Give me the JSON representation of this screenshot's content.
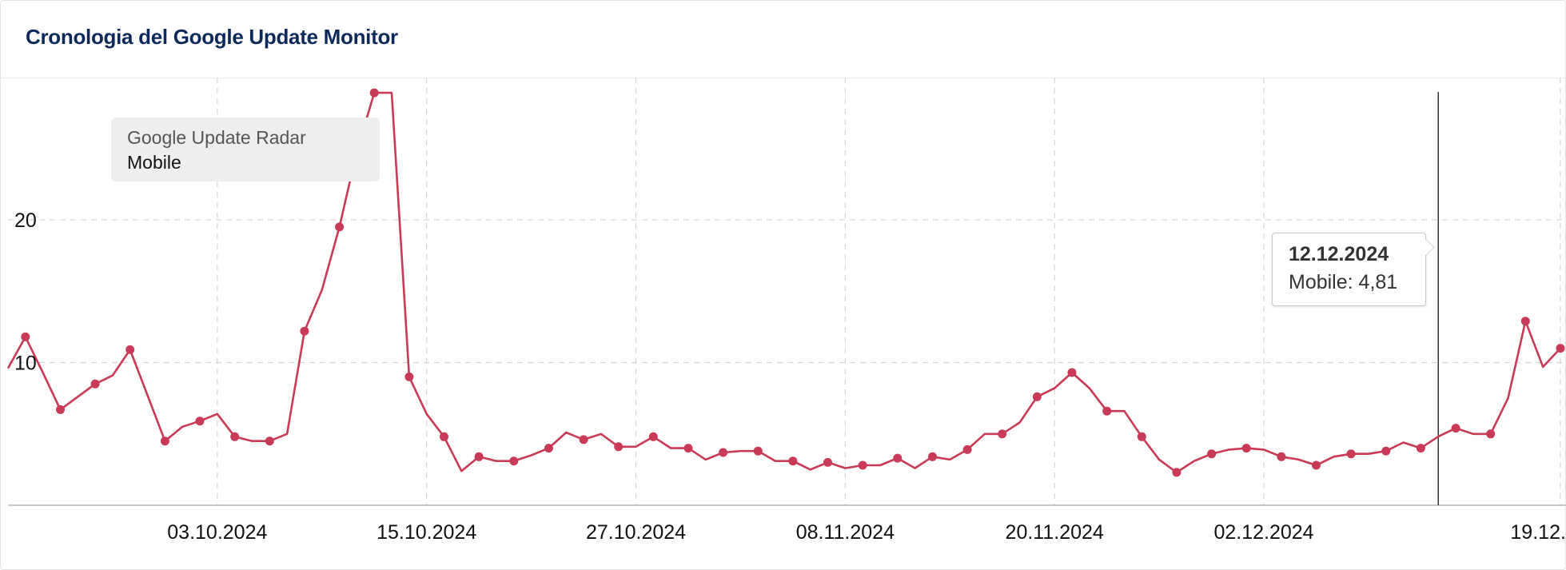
{
  "header": {
    "title": "Cronologia del Google Update Monitor"
  },
  "legend": {
    "title": "Google Update Radar",
    "series_label": "Mobile"
  },
  "tooltip": {
    "date": "12.12.2024",
    "value_text": "Mobile: 4,81"
  },
  "colors": {
    "series": "#c83a55",
    "grid": "#d6d6d6",
    "crosshair": "#333333",
    "title": "#0b2a5b"
  },
  "chart_data": {
    "type": "line",
    "title": "",
    "xlabel": "",
    "ylabel": "",
    "ylim": [
      0,
      29
    ],
    "yticks": [
      {
        "value": 10,
        "label": "10"
      },
      {
        "value": 20,
        "label": "20"
      }
    ],
    "xticks": [
      {
        "x": 12,
        "label": "03.10.2024"
      },
      {
        "x": 24,
        "label": "15.10.2024"
      },
      {
        "x": 36,
        "label": "27.10.2024"
      },
      {
        "x": 48,
        "label": "08.11.2024"
      },
      {
        "x": 60,
        "label": "20.11.2024"
      },
      {
        "x": 72,
        "label": "02.12.2024"
      },
      {
        "x": 89,
        "label": "19.12.2024"
      }
    ],
    "grid": true,
    "legend_position": "top-left",
    "crosshair_x": 82,
    "series": [
      {
        "name": "Mobile",
        "x": [
          0,
          1,
          2,
          3,
          4,
          5,
          6,
          7,
          8,
          9,
          10,
          11,
          12,
          13,
          14,
          15,
          16,
          17,
          18,
          19,
          20,
          21,
          22,
          23,
          24,
          25,
          26,
          27,
          28,
          29,
          30,
          31,
          32,
          33,
          34,
          35,
          36,
          37,
          38,
          39,
          40,
          41,
          42,
          43,
          44,
          45,
          46,
          47,
          48,
          49,
          50,
          51,
          52,
          53,
          54,
          55,
          56,
          57,
          58,
          59,
          60,
          61,
          62,
          63,
          64,
          65,
          66,
          67,
          68,
          69,
          70,
          71,
          72,
          73,
          74,
          75,
          76,
          77,
          78,
          79,
          80,
          81,
          82,
          83,
          84,
          85,
          86,
          87,
          88,
          89
        ],
        "values": [
          9.6,
          11.8,
          9.3,
          6.7,
          7.6,
          8.5,
          9.1,
          10.9,
          7.7,
          4.5,
          5.5,
          5.9,
          6.4,
          4.8,
          4.5,
          4.5,
          5.0,
          12.2,
          15.1,
          19.5,
          24.8,
          28.9,
          28.9,
          9.0,
          6.4,
          4.8,
          2.4,
          3.4,
          3.1,
          3.1,
          3.5,
          4.0,
          5.1,
          4.6,
          5.0,
          4.1,
          4.1,
          4.8,
          4.0,
          4.0,
          3.2,
          3.7,
          3.8,
          3.8,
          3.1,
          3.1,
          2.5,
          3.0,
          2.6,
          2.8,
          2.8,
          3.3,
          2.6,
          3.4,
          3.2,
          3.9,
          5.0,
          5.0,
          5.8,
          7.6,
          8.2,
          9.3,
          8.2,
          6.6,
          6.6,
          4.8,
          3.2,
          2.3,
          3.1,
          3.6,
          3.9,
          4.0,
          3.9,
          3.4,
          3.2,
          2.8,
          3.4,
          3.6,
          3.6,
          3.8,
          4.4,
          4.0,
          4.81,
          5.4,
          5.0,
          5.0,
          7.5,
          12.9,
          9.7,
          11.0
        ]
      }
    ]
  }
}
